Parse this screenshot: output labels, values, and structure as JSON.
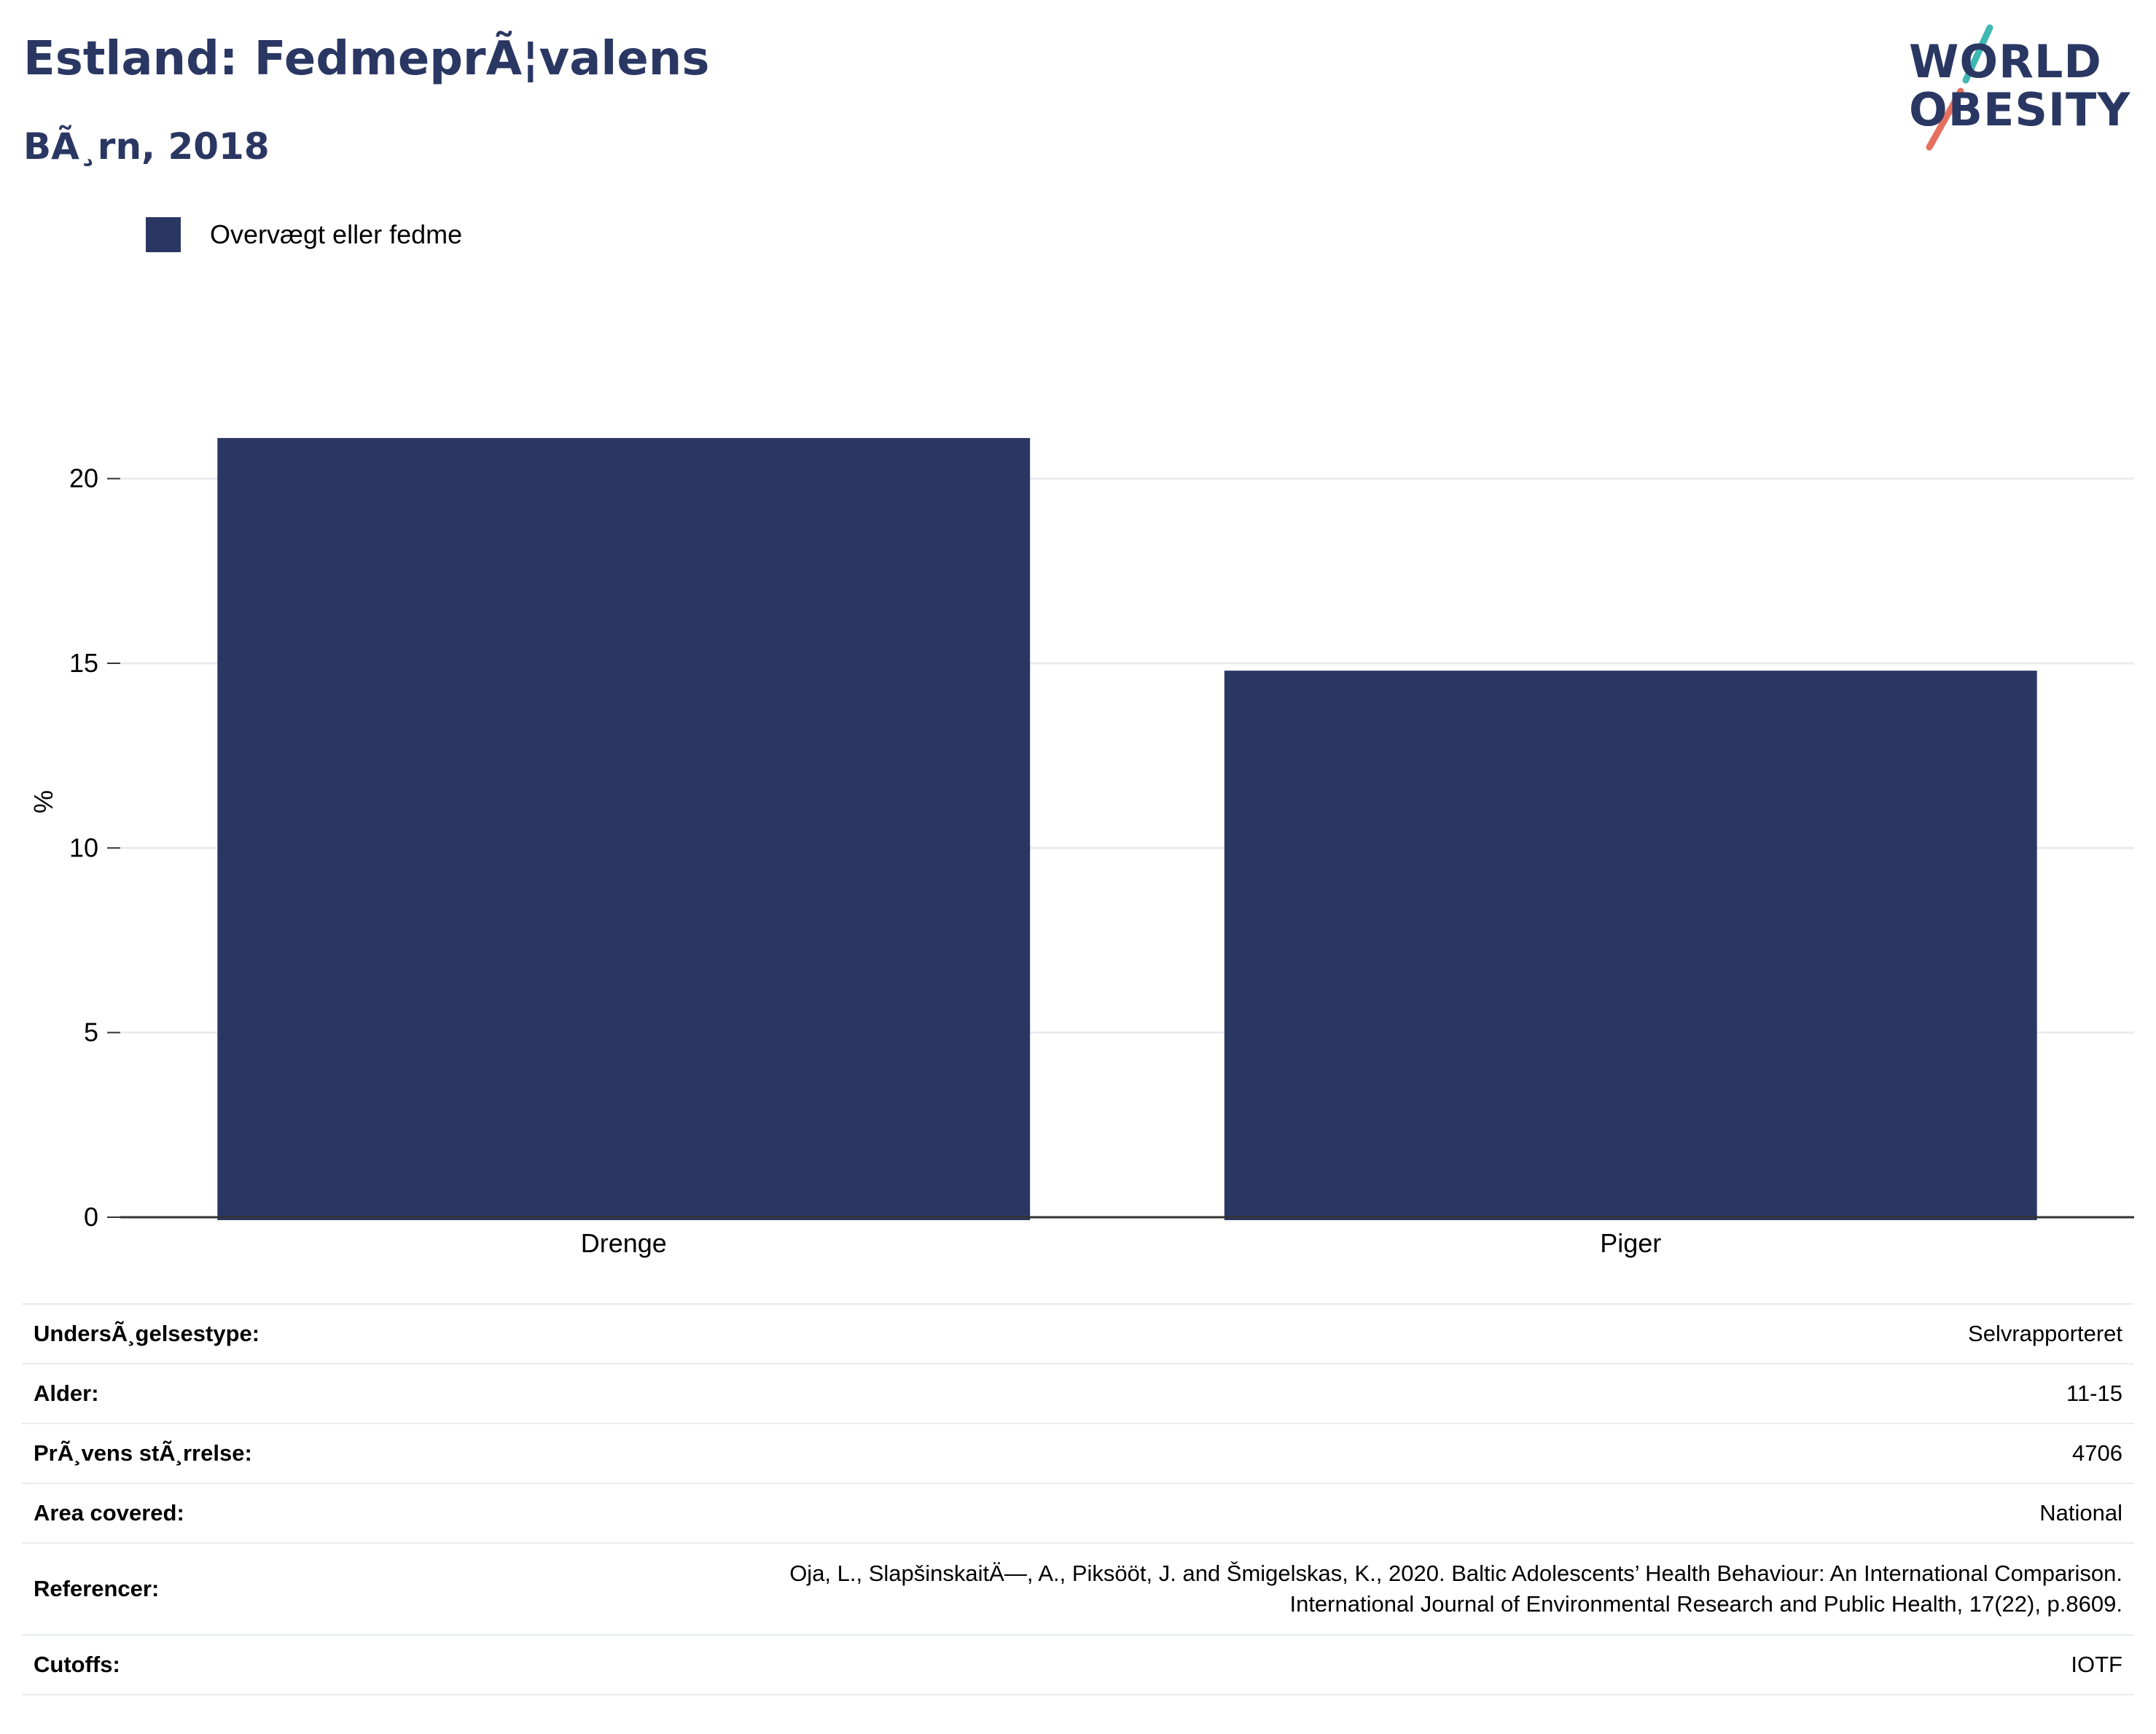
{
  "header": {
    "title": "Estland: FedmeprÃ¦valens",
    "subtitle": "BÃ¸rn, 2018"
  },
  "logo": {
    "line1": "WORLD",
    "line2": "OBESITY",
    "colors": {
      "text": "#2a3763",
      "teal": "#3fb8b2",
      "coral": "#e5705e"
    }
  },
  "legend": {
    "items": [
      {
        "label": "Overvægt eller fedme",
        "color": "#2a3763"
      }
    ]
  },
  "chart_data": {
    "type": "bar",
    "categories": [
      "Drenge",
      "Piger"
    ],
    "series": [
      {
        "name": "Overvægt eller fedme",
        "values": [
          21.1,
          14.8
        ],
        "color": "#2a3763"
      }
    ],
    "ylabel": "%",
    "xlabel": "",
    "ylim": [
      0,
      22.5
    ],
    "yticks": [
      0,
      5,
      10,
      15,
      20
    ],
    "grid": true,
    "legend_position": "top-left"
  },
  "meta": {
    "rows": [
      {
        "key": "UndersÃ¸gelsestype:",
        "value": [
          "Selvrapporteret"
        ]
      },
      {
        "key": "Alder:",
        "value": [
          "11-15"
        ]
      },
      {
        "key": "PrÃ¸vens stÃ¸rrelse:",
        "value": [
          "4706"
        ]
      },
      {
        "key": "Area covered:",
        "value": [
          "National"
        ]
      },
      {
        "key": "Referencer:",
        "value": [
          "Oja, L., SlapšinskaitÄ—, A., Piksööt, J. and Šmigelskas, K., 2020. Baltic Adolescents’ Health Behaviour: An International Comparison.",
          "International Journal of Environmental Research and Public Health, 17(22), p.8609."
        ]
      },
      {
        "key": "Cutoffs:",
        "value": [
          "IOTF"
        ]
      }
    ]
  }
}
